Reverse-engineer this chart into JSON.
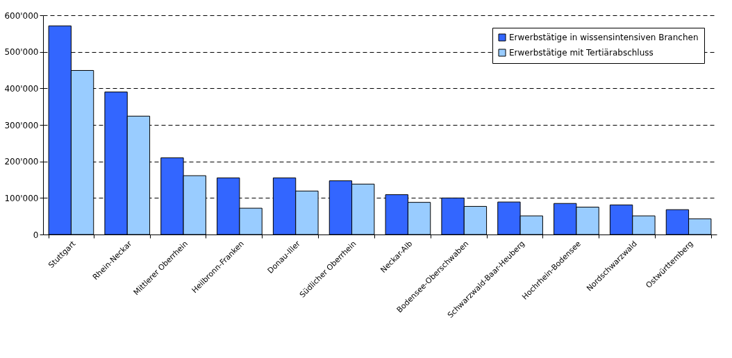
{
  "chart_data": {
    "type": "bar",
    "categories": [
      "Stuttgart",
      "Rhein-Neckar",
      "Mittlerer Oberrhein",
      "Heilbronn-Franken",
      "Donau-Iller",
      "Südlicher Oberrhein",
      "Neckar-Alb",
      "Bodensee-Oberschwaben",
      "Schwarzwald-Baar-Heuberg",
      "Hochrhein-Bodensee",
      "Nordschwarzwald",
      "Ostwürttemberg"
    ],
    "series": [
      {
        "name": "Erwerbstätige in wissensintensiven Branchen",
        "color": "#3366ff",
        "values": [
          571000,
          390000,
          210000,
          155000,
          155000,
          147000,
          109000,
          100000,
          89000,
          85000,
          81000,
          68000
        ]
      },
      {
        "name": "Erwerbstätige mit Tertiärabschluss",
        "color": "#99ccff",
        "values": [
          449000,
          324000,
          161000,
          72000,
          119000,
          138000,
          88000,
          77000,
          51000,
          75000,
          51000,
          43000
        ]
      }
    ],
    "ylim": [
      0,
      600000
    ],
    "yticks": [
      0,
      {
        "value": 100000,
        "label": "100'000"
      },
      {
        "value": 200000,
        "label": "200'000"
      },
      {
        "value": 300000,
        "label": "300'000"
      },
      {
        "value": 400000,
        "label": "400'000"
      },
      {
        "value": 500000,
        "label": "500'000"
      },
      {
        "value": 600000,
        "label": "600'000"
      }
    ],
    "grid": "y",
    "legend": "top right"
  }
}
